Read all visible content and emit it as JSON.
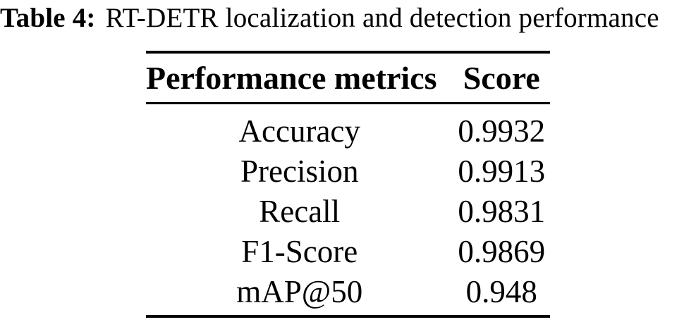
{
  "caption": {
    "label": "Table 4:",
    "title": "RT-DETR localization and detection performance"
  },
  "table": {
    "header": {
      "metric": "Performance metrics",
      "score": "Score"
    },
    "rows": [
      {
        "metric": "Accuracy",
        "score": "0.9932"
      },
      {
        "metric": "Precision",
        "score": "0.9913"
      },
      {
        "metric": "Recall",
        "score": "0.9831"
      },
      {
        "metric": "F1-Score",
        "score": "0.9869"
      },
      {
        "metric": "mAP@50",
        "score": "0.948"
      }
    ]
  },
  "colors": {
    "text": "#000000",
    "background": "#ffffff",
    "rule": "#000000"
  }
}
